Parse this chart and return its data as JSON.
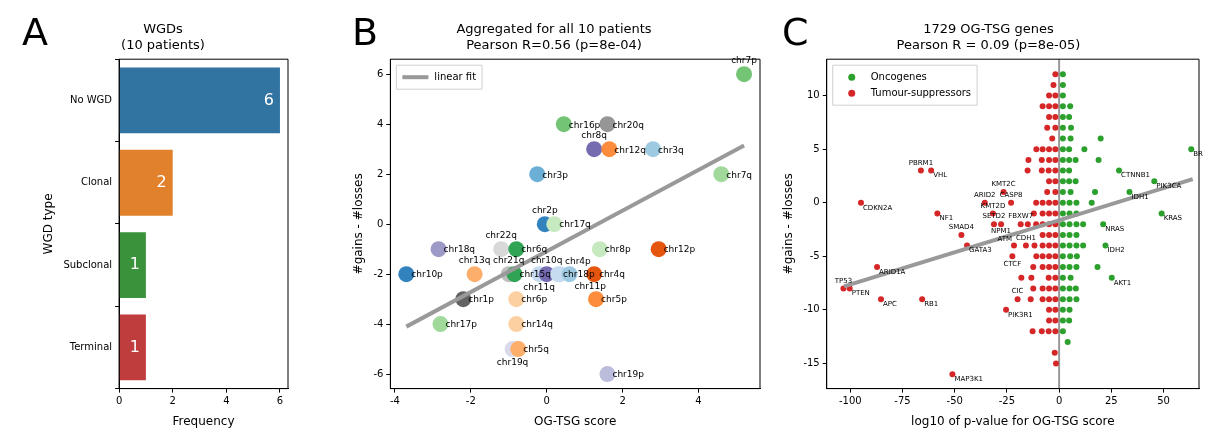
{
  "chart_data": [
    {
      "type": "bar",
      "title": "WGDs\n(10 patients)",
      "orientation": "horizontal",
      "categories": [
        "No WGD",
        "Clonal",
        "Subclonal",
        "Terminal"
      ],
      "values": [
        6,
        2,
        1,
        1
      ],
      "colors": [
        "#3274a1",
        "#e1812c",
        "#3a923a",
        "#c03d3e"
      ],
      "xlim": [
        0,
        6.3
      ],
      "xticks": [
        0,
        2,
        4,
        6
      ],
      "xlabel": "Frequency",
      "ylabel": "WGD type",
      "data_labels": true,
      "grid": false,
      "annotations": [
        "A"
      ]
    },
    {
      "type": "scatter",
      "title": "Aggregated for all 10 patients\nPearson R=0.56 (p=8e-04)",
      "xlabel": "OG-TSG score",
      "ylabel": "#gains - #losses",
      "xlim": [
        -4.12,
        5.62
      ],
      "xticks": [
        -4,
        -2,
        0,
        2,
        4
      ],
      "ylim": [
        -6.58,
        6.6
      ],
      "yticks": [
        -6,
        -4,
        -2,
        0,
        2,
        4,
        6
      ],
      "grid": false,
      "legend": "top left",
      "marker": "circle",
      "annotations": [
        "B"
      ],
      "series": [
        {
          "type": "scatter",
          "x": [
            5.2,
            0.45,
            1.6,
            1.25,
            1.65,
            2.8,
            -0.25,
            4.6,
            -0.05,
            0.2,
            -2.85,
            -1.2,
            -0.8,
            1.4,
            2.95,
            -3.7,
            -1.9,
            -1.0,
            -0.85,
            -0.2,
            0.0,
            0.3,
            0.35,
            0.6,
            1.25,
            -2.2,
            -0.8,
            1.3,
            -2.8,
            -0.8,
            -0.9,
            -0.75,
            1.6
          ],
          "values": [
            6,
            4,
            4,
            3,
            3,
            3,
            2,
            2,
            0,
            0,
            -1,
            -1,
            -1,
            -1,
            -1,
            -2,
            -2,
            -2,
            -2,
            -2,
            -2,
            -2,
            -2,
            -2,
            -2,
            -3,
            -3,
            -3,
            -4,
            -4,
            -5,
            -5,
            -6
          ],
          "colors": [
            "#74c476",
            "#74c476",
            "#969696",
            "#756bb1",
            "#fd8d3c",
            "#9ecae1",
            "#6baed6",
            "#a1d99b",
            "#3182bd",
            "#c7e9c0",
            "#9e9ac8",
            "#d9d9d9",
            "#31a354",
            "#c7e9c0",
            "#e6550d",
            "#3182bd",
            "#fdae6b",
            "#bdbdbd",
            "#31a354",
            "#c6dbef",
            "#756bb1",
            "#c6dbef",
            "#c6dbef",
            "#9ecae1",
            "#e6550d",
            "#636363",
            "#fdd0a2",
            "#fd8d3c",
            "#a1d99b",
            "#fdd0a2",
            "#dadaeb",
            "#fdae6b",
            "#bcbddc"
          ],
          "value_labels": [
            "chr7p",
            "chr16p",
            "chr20q",
            "chr8q",
            "chr12q",
            "chr3q",
            "chr3p",
            "chr7q",
            "chr2p",
            "chr17q",
            "chr18q",
            "chr22q",
            "chr6q",
            "chr8p",
            "chr12p",
            "chr10p",
            "chr13q",
            "chr21q",
            "chr15q",
            "chr11q",
            "chr10q",
            "chr18p",
            "chr4p",
            "chr11p",
            "chr4q",
            "chr1p",
            "chr6p",
            "chr5p",
            "chr17p",
            "chr14q",
            "chr19q",
            "chr5q",
            "chr19p"
          ]
        },
        {
          "type": "line",
          "name": "linear fit",
          "color": "#999999",
          "marker": "none",
          "x": [
            -3.7,
            5.2
          ],
          "values": [
            -4.1,
            3.15
          ]
        }
      ]
    },
    {
      "type": "scatter",
      "title": "1729 OG-TSG genes\nPearson R = 0.09 (p=8e-05)",
      "xlabel": "log10 of p-value for OG-TSG score",
      "ylabel": "#gains - #losses",
      "xlim": [
        -111.3,
        67
      ],
      "xticks": [
        -100,
        -75,
        -50,
        -25,
        0,
        25,
        50
      ],
      "ylim": [
        -17.35,
        13.4
      ],
      "yticks": [
        -15,
        -10,
        -5,
        0,
        5,
        10
      ],
      "grid": false,
      "legend": "top left",
      "marker": "circle",
      "annotations": [
        "C"
      ],
      "ref_lines": [
        {
          "axis": "x",
          "value": 0,
          "color": "#999999"
        }
      ],
      "series": [
        {
          "type": "scatter",
          "name": "Oncogenes",
          "color": "#2ca02c",
          "x": [
            1.8,
            1.8,
            1.8,
            1.8,
            5.3,
            1.8,
            4.8,
            1.8,
            5.7,
            1.8,
            5.5,
            19.9,
            1.8,
            4.8,
            12.1,
            63.3,
            1.8,
            4.8,
            7.9,
            18.9,
            1.8,
            4.8,
            28.7,
            1.8,
            4.8,
            7.9,
            45.6,
            1.8,
            5.5,
            17.2,
            33.7,
            1.8,
            5,
            8.3,
            15.6,
            1.8,
            5,
            8.3,
            49.1,
            1.8,
            5,
            8.3,
            11.5,
            21.1,
            1.8,
            5,
            8.3,
            1.8,
            5,
            8.3,
            11.5,
            22.2,
            1.8,
            5.3,
            8.5,
            1.8,
            5,
            8.3,
            18.4,
            1.8,
            5.5,
            25.2,
            1.8,
            5,
            8,
            1.8,
            5,
            8.3,
            1.8,
            5,
            1.8,
            4.8,
            1.8,
            4.1
          ],
          "values": [
            12,
            11,
            10,
            9,
            9,
            8,
            8,
            7,
            7,
            6,
            6,
            6,
            5,
            5,
            5,
            5,
            4,
            4,
            4,
            4,
            3,
            3,
            3,
            2,
            2,
            2,
            2,
            1,
            1,
            1,
            1,
            0,
            0,
            0,
            0,
            -1,
            -1,
            -1,
            -1,
            -2,
            -2,
            -2,
            -2,
            -2,
            -3,
            -3,
            -3,
            -4,
            -4,
            -4,
            -4,
            -4,
            -5,
            -5,
            -5,
            -6,
            -6,
            -6,
            -6,
            -7,
            -7,
            -7,
            -8,
            -8,
            -8,
            -9,
            -9,
            -9,
            -10,
            -10,
            -11,
            -11,
            -12,
            -13
          ],
          "value_labels": [
            null,
            null,
            null,
            null,
            null,
            null,
            null,
            null,
            null,
            null,
            null,
            null,
            null,
            null,
            null,
            "BR",
            null,
            null,
            null,
            null,
            null,
            null,
            "CTNNB1",
            null,
            null,
            null,
            "PIK3CA",
            null,
            null,
            null,
            "IDH1",
            null,
            null,
            null,
            null,
            null,
            null,
            null,
            "KRAS",
            null,
            null,
            null,
            null,
            "NRAS",
            null,
            null,
            null,
            null,
            null,
            null,
            null,
            "IDH2",
            null,
            null,
            null,
            null,
            null,
            null,
            null,
            null,
            null,
            "AKT1",
            null,
            null,
            null,
            null,
            null,
            null,
            null,
            null,
            null,
            null,
            null,
            null
          ]
        },
        {
          "type": "scatter",
          "name": "Tumour-suppressors",
          "color": "#d62728",
          "x": [
            -1.8,
            -2.7,
            -1.8,
            -4.8,
            -1.8,
            -4.8,
            -7.9,
            -1.8,
            -4.8,
            -1.8,
            -5.7,
            -3.3,
            -1.8,
            -4.8,
            -7.9,
            -10.9,
            -1.8,
            -4.8,
            -8.3,
            -14.7,
            -1.8,
            -5,
            -8.3,
            -15.1,
            -61.3,
            -66.2,
            -1.8,
            -4.8,
            -1.8,
            -5.7,
            -26.6,
            -1.8,
            -4.8,
            -7.9,
            -11,
            -23,
            -35.6,
            -94.9,
            -1.8,
            -4.8,
            -7.9,
            -12.1,
            -31.7,
            -58.3,
            -1.8,
            -4.8,
            -7.9,
            -11,
            -15,
            -18.4,
            -27.8,
            -31.2,
            -1.8,
            -4.8,
            -7.9,
            -46.8,
            -1.8,
            -4.8,
            -7.9,
            -11.8,
            -15.9,
            -21.6,
            -44.1,
            -1.8,
            -4.8,
            -7.9,
            -10.9,
            -22.4,
            -1.8,
            -4.8,
            -7.9,
            -12.4,
            -87.2,
            -1.8,
            -5,
            -13.3,
            -18.1,
            -1.8,
            -4.8,
            -7.9,
            -12.4,
            -100.3,
            -103.3,
            -1.8,
            -4.8,
            -7.9,
            -13.6,
            -19.9,
            -65.6,
            -85.3,
            -1.8,
            -4.8,
            -25.4,
            -1.8,
            -4.8,
            -1.8,
            -5,
            -8.3,
            -12.7,
            -2.1,
            -1.5,
            -51.1
          ],
          "values": [
            12,
            11,
            10,
            10,
            9,
            9,
            9,
            8,
            8,
            7,
            7,
            6,
            5,
            5,
            5,
            5,
            4,
            4,
            4,
            4,
            3,
            3,
            3,
            3,
            3,
            3,
            2,
            2,
            1,
            1,
            1,
            0,
            0,
            0,
            0,
            0,
            0,
            0,
            -1,
            -1,
            -1,
            -1,
            -1,
            -1,
            -2,
            -2,
            -2,
            -2,
            -2,
            -2,
            -2,
            -2,
            -3,
            -3,
            -3,
            -3,
            -4,
            -4,
            -4,
            -4,
            -4,
            -4,
            -4,
            -5,
            -5,
            -5,
            -5,
            -5,
            -6,
            -6,
            -6,
            -6,
            -6,
            -7,
            -7,
            -7,
            -7,
            -8,
            -8,
            -8,
            -8,
            -8,
            -8,
            -9,
            -9,
            -9,
            -9,
            -9,
            -9,
            -9,
            -10,
            -10,
            -10,
            -11,
            -11,
            -12,
            -12,
            -12,
            -12,
            -14,
            -15,
            -16
          ],
          "value_labels": [
            null,
            null,
            null,
            null,
            null,
            null,
            null,
            null,
            null,
            null,
            null,
            null,
            null,
            null,
            null,
            null,
            null,
            null,
            null,
            null,
            null,
            null,
            null,
            null,
            "VHL",
            "PBRM1",
            null,
            null,
            null,
            null,
            "KMT2C",
            null,
            null,
            null,
            null,
            "CASP8",
            "ARID2",
            "CDKN2A",
            null,
            null,
            null,
            null,
            "KMT2D",
            "NF1",
            null,
            null,
            null,
            null,
            null,
            "FBXW7",
            "NPM1",
            "SETD2",
            null,
            null,
            null,
            "SMAD4",
            null,
            null,
            null,
            null,
            "CDH1",
            "ATM",
            "GATA3",
            null,
            null,
            null,
            null,
            "CTCF",
            null,
            null,
            null,
            null,
            "ARID1A",
            null,
            null,
            null,
            null,
            null,
            null,
            null,
            null,
            "PTEN",
            "TP53",
            null,
            null,
            null,
            null,
            "CIC",
            "RB1",
            "APC",
            null,
            null,
            "PIK3R1",
            null,
            null,
            null,
            null,
            null,
            null,
            null,
            null,
            "MAP3K1"
          ]
        },
        {
          "type": "line",
          "color": "#999999",
          "marker": "none",
          "x": [
            -103,
            64
          ],
          "values": [
            -7.8,
            2.2
          ]
        }
      ]
    }
  ]
}
